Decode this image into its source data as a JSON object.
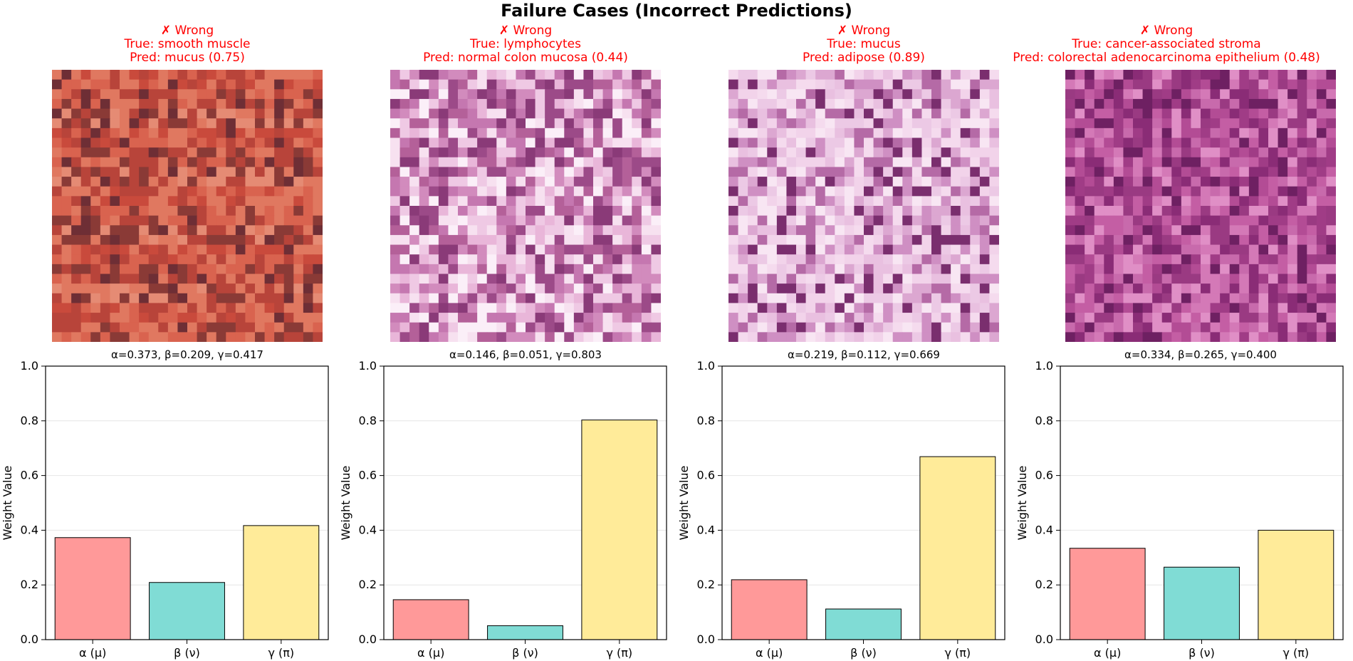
{
  "figure_title": "Failure Cases (Incorrect Predictions)",
  "colors": {
    "alpha_bar": "#ff9999",
    "beta_bar": "#80dcd5",
    "gamma_bar": "#ffeb99",
    "wrong_text": "#ff0000"
  },
  "chart_data": [
    {
      "type": "bar",
      "status": "✗ Wrong",
      "true_label": "True: smooth muscle",
      "pred_label": "Pred: mucus (0.75)",
      "patch_palette": [
        "#c94a3c",
        "#d9634f",
        "#e07860",
        "#b8443a",
        "#8a3a36",
        "#e58b74",
        "#a35a4c",
        "#d4705a",
        "#6e2e35"
      ],
      "weights_text": "α=0.373, β=0.209, γ=0.417",
      "categories": [
        "α (μ)",
        "β (ν)",
        "γ (π)"
      ],
      "values": [
        0.373,
        0.209,
        0.417
      ],
      "ylabel": "Weight Value",
      "ylim": [
        0,
        1.0
      ],
      "yticks": [
        "0.0",
        "0.2",
        "0.4",
        "0.6",
        "0.8",
        "1.0"
      ]
    },
    {
      "type": "bar",
      "status": "✗ Wrong",
      "true_label": "True: lymphocytes",
      "pred_label": "Pred: normal colon mucosa (0.44)",
      "patch_palette": [
        "#f7e1f0",
        "#e9b6d9",
        "#d28bbd",
        "#b46099",
        "#8a3a78",
        "#fbeff8",
        "#c577b0",
        "#9c4a88",
        "#efc9e4"
      ],
      "weights_text": "α=0.146, β=0.051, γ=0.803",
      "categories": [
        "α (μ)",
        "β (ν)",
        "γ (π)"
      ],
      "values": [
        0.146,
        0.051,
        0.803
      ],
      "ylabel": "Weight Value",
      "ylim": [
        0,
        1.0
      ],
      "yticks": [
        "0.0",
        "0.2",
        "0.4",
        "0.6",
        "0.8",
        "1.0"
      ]
    },
    {
      "type": "bar",
      "status": "✗ Wrong",
      "true_label": "True: mucus",
      "pred_label": "Pred: adipose (0.89)",
      "patch_palette": [
        "#f2d3ea",
        "#e9c0e0",
        "#f8e6f3",
        "#dca7d1",
        "#ecc9e5",
        "#cf8fc3",
        "#f5dbee",
        "#b56aa6",
        "#7a2e6e"
      ],
      "weights_text": "α=0.219, β=0.112, γ=0.669",
      "categories": [
        "α (μ)",
        "β (ν)",
        "γ (π)"
      ],
      "values": [
        0.219,
        0.112,
        0.669
      ],
      "ylabel": "Weight Value",
      "ylim": [
        0,
        1.0
      ],
      "yticks": [
        "0.0",
        "0.2",
        "0.4",
        "0.6",
        "0.8",
        "1.0"
      ]
    },
    {
      "type": "bar",
      "status": "✗ Wrong",
      "true_label": "True: cancer-associated stroma",
      "pred_label": "Pred: colorectal adenocarcinoma epithelium (0.48)",
      "patch_palette": [
        "#b34c95",
        "#c45ea4",
        "#a03c86",
        "#8a2c76",
        "#d479b7",
        "#9a3a82",
        "#c86aac",
        "#6e2062",
        "#e08fc6"
      ],
      "weights_text": "α=0.334, β=0.265, γ=0.400",
      "categories": [
        "α (μ)",
        "β (ν)",
        "γ (π)"
      ],
      "values": [
        0.334,
        0.265,
        0.4
      ],
      "ylabel": "Weight Value",
      "ylim": [
        0,
        1.0
      ],
      "yticks": [
        "0.0",
        "0.2",
        "0.4",
        "0.6",
        "0.8",
        "1.0"
      ]
    }
  ]
}
